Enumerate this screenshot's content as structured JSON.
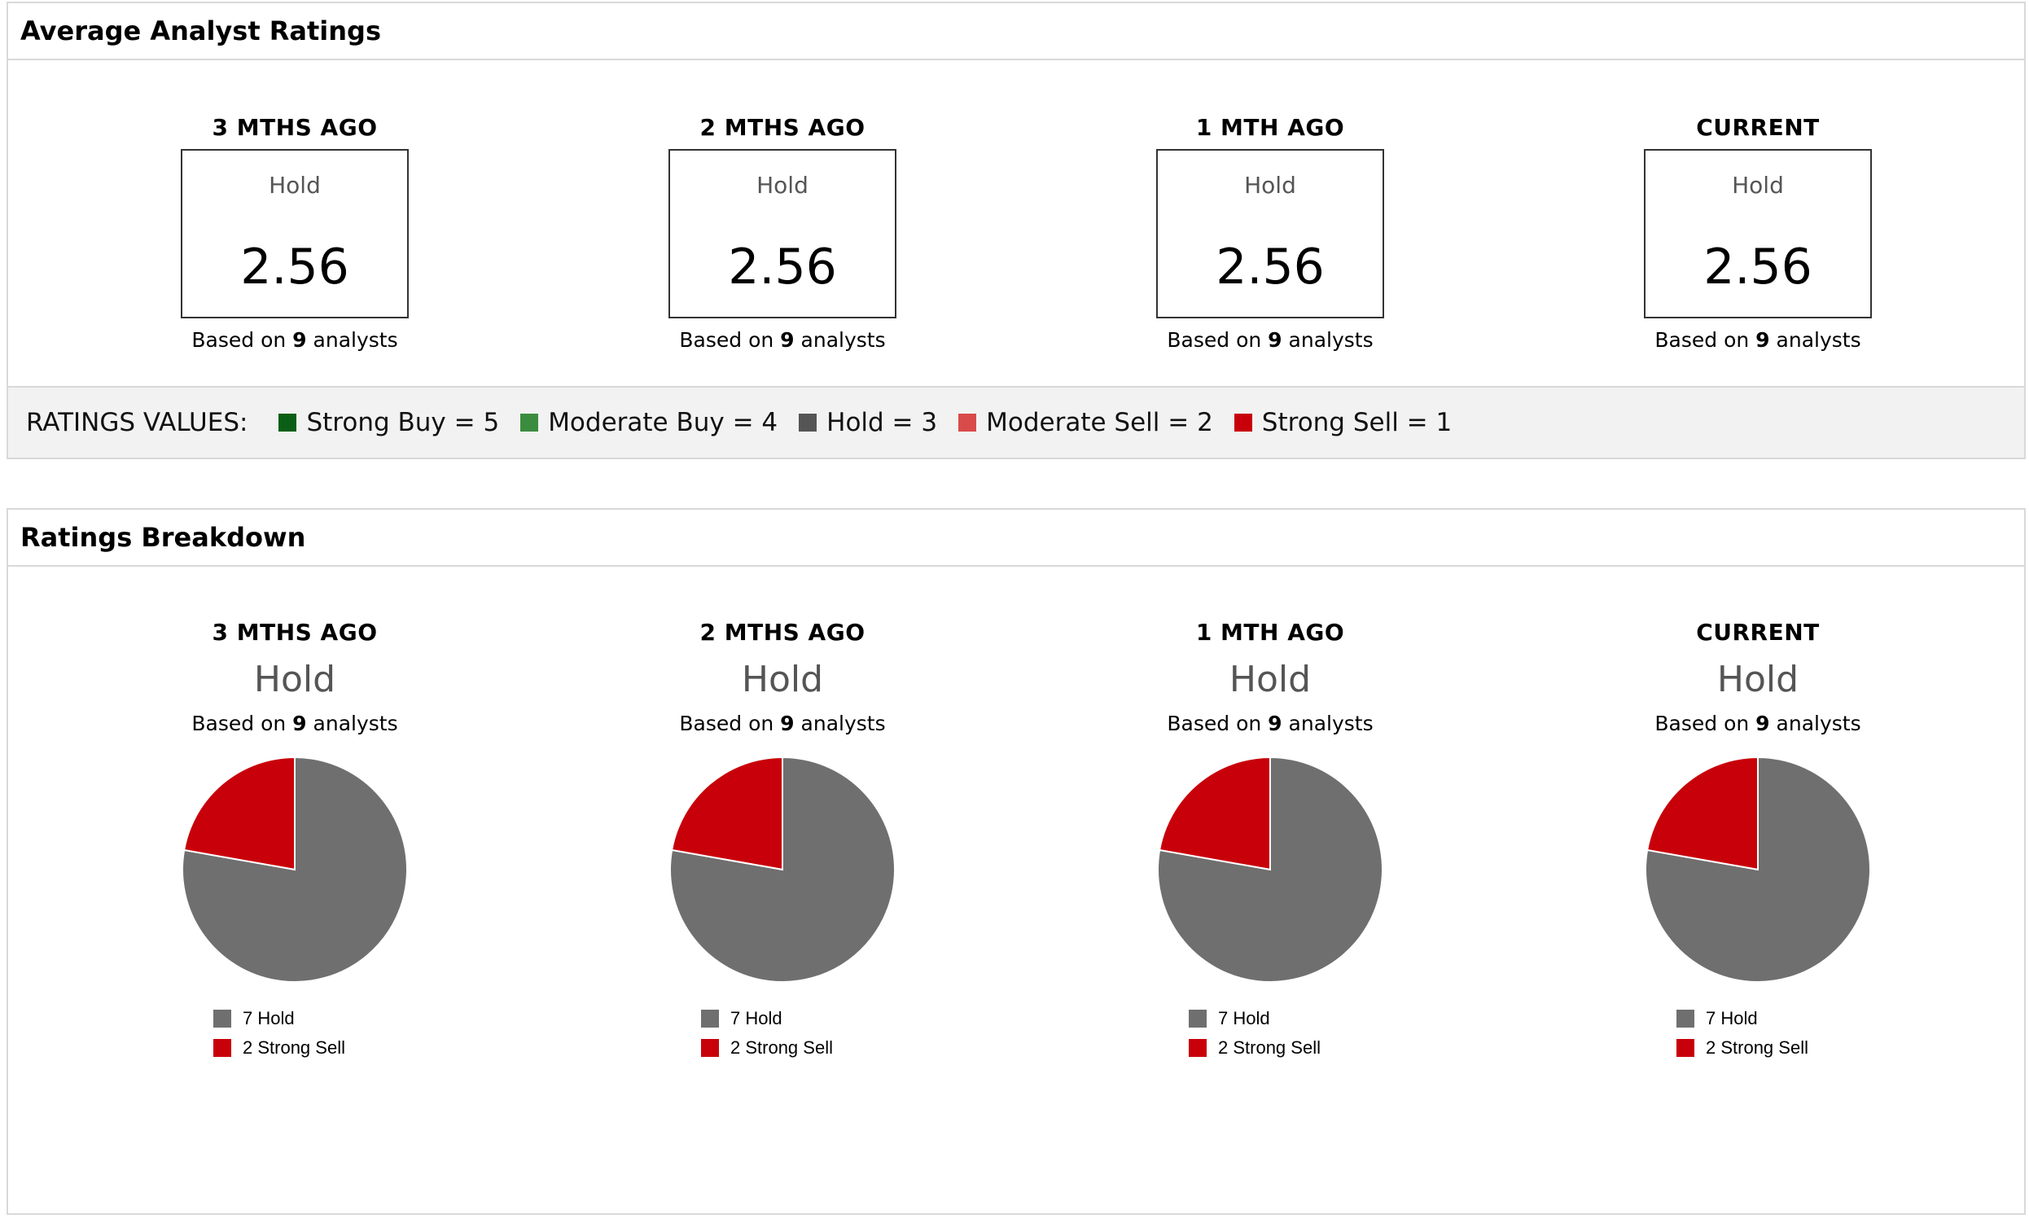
{
  "average": {
    "title": "Average Analyst Ratings",
    "columns": [
      {
        "period": "3 MTHS AGO",
        "label": "Hold",
        "value": "2.56",
        "based_prefix": "Based on ",
        "analysts": "9",
        "based_suffix": " analysts"
      },
      {
        "period": "2 MTHS AGO",
        "label": "Hold",
        "value": "2.56",
        "based_prefix": "Based on ",
        "analysts": "9",
        "based_suffix": " analysts"
      },
      {
        "period": "1 MTH AGO",
        "label": "Hold",
        "value": "2.56",
        "based_prefix": "Based on ",
        "analysts": "9",
        "based_suffix": " analysts"
      },
      {
        "period": "CURRENT",
        "label": "Hold",
        "value": "2.56",
        "based_prefix": "Based on ",
        "analysts": "9",
        "based_suffix": " analysts"
      }
    ],
    "legend": {
      "title": "RATINGS VALUES:",
      "items": [
        {
          "label": "Strong Buy = 5",
          "color": "#0b5e16"
        },
        {
          "label": "Moderate Buy = 4",
          "color": "#3b8c3e"
        },
        {
          "label": "Hold = 3",
          "color": "#555555"
        },
        {
          "label": "Moderate Sell = 2",
          "color": "#d94a4a"
        },
        {
          "label": "Strong Sell = 1",
          "color": "#c8000a"
        }
      ]
    }
  },
  "breakdown": {
    "title": "Ratings Breakdown",
    "columns": [
      {
        "period": "3 MTHS AGO",
        "label": "Hold",
        "based_prefix": "Based on ",
        "analysts": "9",
        "based_suffix": " analysts",
        "legend": [
          {
            "text": "7 Hold",
            "color": "#6f6f6f"
          },
          {
            "text": "2 Strong Sell",
            "color": "#c8000a"
          }
        ]
      },
      {
        "period": "2 MTHS AGO",
        "label": "Hold",
        "based_prefix": "Based on ",
        "analysts": "9",
        "based_suffix": " analysts",
        "legend": [
          {
            "text": "7 Hold",
            "color": "#6f6f6f"
          },
          {
            "text": "2 Strong Sell",
            "color": "#c8000a"
          }
        ]
      },
      {
        "period": "1 MTH AGO",
        "label": "Hold",
        "based_prefix": "Based on ",
        "analysts": "9",
        "based_suffix": " analysts",
        "legend": [
          {
            "text": "7 Hold",
            "color": "#6f6f6f"
          },
          {
            "text": "2 Strong Sell",
            "color": "#c8000a"
          }
        ]
      },
      {
        "period": "CURRENT",
        "label": "Hold",
        "based_prefix": "Based on ",
        "analysts": "9",
        "based_suffix": " analysts",
        "legend": [
          {
            "text": "7 Hold",
            "color": "#6f6f6f"
          },
          {
            "text": "2 Strong Sell",
            "color": "#c8000a"
          }
        ]
      }
    ]
  },
  "chart_data": [
    {
      "type": "pie",
      "categories": [
        "Strong Sell",
        "Hold"
      ],
      "values": [
        2,
        7
      ],
      "colors": [
        "#c8000a",
        "#6f6f6f"
      ]
    },
    {
      "type": "pie",
      "categories": [
        "Strong Sell",
        "Hold"
      ],
      "values": [
        2,
        7
      ],
      "colors": [
        "#c8000a",
        "#6f6f6f"
      ]
    },
    {
      "type": "pie",
      "categories": [
        "Strong Sell",
        "Hold"
      ],
      "values": [
        2,
        7
      ],
      "colors": [
        "#c8000a",
        "#6f6f6f"
      ]
    },
    {
      "type": "pie",
      "categories": [
        "Strong Sell",
        "Hold"
      ],
      "values": [
        2,
        7
      ],
      "colors": [
        "#c8000a",
        "#6f6f6f"
      ]
    }
  ]
}
